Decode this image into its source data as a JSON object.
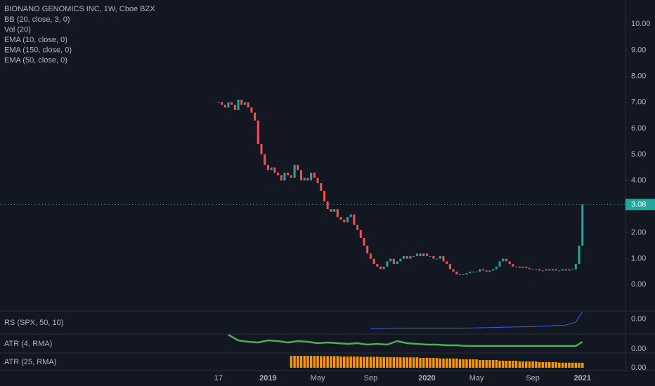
{
  "chart_data": [
    {
      "type": "candlestick",
      "title": "BIONANO GENOMICS INC, 1W, Cboe BZX",
      "indicators": [
        "BB (20, close, 3, 0)",
        "Vol (20)",
        "EMA (10, close, 0)",
        "EMA (150, close, 0)",
        "EMA (50, close, 0)"
      ],
      "x": [
        0,
        1,
        2,
        3,
        4,
        5,
        6,
        7,
        8,
        9,
        10,
        11,
        12,
        13,
        14,
        15,
        16,
        17,
        18,
        19,
        20,
        21,
        22,
        23,
        24,
        25,
        26,
        27,
        28,
        29,
        30,
        31,
        32,
        33,
        34,
        35,
        36,
        37,
        38,
        39,
        40,
        41,
        42,
        43,
        44,
        45,
        46,
        47,
        48,
        49,
        50,
        51,
        52,
        53,
        54,
        55,
        56,
        57,
        58,
        59,
        60,
        61,
        62,
        63,
        64,
        65,
        66,
        67,
        68,
        69,
        70,
        71,
        72,
        73,
        74,
        75,
        76,
        77,
        78,
        79,
        80,
        81,
        82,
        83,
        84,
        85,
        86,
        87,
        88,
        89,
        90,
        91,
        92,
        93,
        94,
        95,
        96,
        97,
        98,
        99,
        100,
        101,
        102,
        103,
        104,
        105,
        106,
        107,
        108,
        109,
        110
      ],
      "values": [
        7.0,
        6.9,
        6.8,
        7.0,
        6.9,
        6.7,
        7.1,
        6.9,
        7.0,
        6.8,
        6.6,
        6.3,
        5.4,
        5.0,
        4.6,
        4.4,
        4.5,
        4.3,
        4.2,
        4.0,
        4.3,
        4.2,
        4.1,
        4.6,
        4.4,
        4.0,
        4.1,
        4.0,
        4.3,
        4.1,
        3.9,
        3.6,
        3.2,
        2.9,
        2.8,
        2.9,
        2.6,
        2.5,
        2.4,
        2.6,
        2.7,
        2.3,
        2.1,
        1.8,
        1.5,
        1.2,
        1.0,
        0.8,
        0.7,
        0.6,
        0.7,
        0.9,
        1.0,
        0.8,
        0.9,
        1.0,
        1.1,
        1.0,
        1.1,
        1.1,
        1.2,
        1.1,
        1.2,
        1.1,
        1.1,
        1.0,
        1.0,
        1.1,
        0.9,
        0.8,
        0.6,
        0.5,
        0.4,
        0.4,
        0.4,
        0.45,
        0.5,
        0.5,
        0.5,
        0.6,
        0.55,
        0.5,
        0.55,
        0.6,
        0.7,
        0.9,
        1.0,
        0.9,
        0.8,
        0.7,
        0.7,
        0.65,
        0.7,
        0.65,
        0.6,
        0.6,
        0.6,
        0.55,
        0.55,
        0.6,
        0.55,
        0.6,
        0.55,
        0.55,
        0.6,
        0.55,
        0.6,
        0.6,
        0.8,
        1.5,
        3.08
      ],
      "last_price": {
        "value": 3.08,
        "label": "3.08"
      },
      "up_color": "#26a69a",
      "down_color": "#ef5350",
      "xlim": [
        -66,
        123
      ],
      "xticks": [
        {
          "value": 0,
          "label": "17"
        },
        {
          "value": 15,
          "label": "2019"
        },
        {
          "value": 30,
          "label": "May"
        },
        {
          "value": 46,
          "label": "Sep"
        },
        {
          "value": 63,
          "label": "2020"
        },
        {
          "value": 78,
          "label": "May"
        },
        {
          "value": 95,
          "label": "Sep"
        },
        {
          "value": 110,
          "label": "2021"
        }
      ],
      "ylim": [
        -1,
        10.92
      ],
      "yticks": [
        {
          "value": 0,
          "label": "0.00"
        },
        {
          "value": 1,
          "label": "1.00"
        },
        {
          "value": 2,
          "label": "2.00"
        },
        {
          "value": 3,
          "label": "3.00"
        },
        {
          "value": 4,
          "label": "4.00"
        },
        {
          "value": 5,
          "label": "5.00"
        },
        {
          "value": 6,
          "label": "6.00"
        },
        {
          "value": 7,
          "label": "7.00"
        },
        {
          "value": 8,
          "label": "8.00"
        },
        {
          "value": 9,
          "label": "9.00"
        },
        {
          "value": 10,
          "label": "10.00"
        }
      ]
    },
    {
      "type": "line",
      "title": "RS (SPX, 50, 10)",
      "color": "#2962ff",
      "x": [
        46,
        55,
        65,
        75,
        85,
        95,
        100,
        105,
        108,
        110
      ],
      "values": [
        -0.65,
        -0.6,
        -0.6,
        -0.6,
        -0.55,
        -0.5,
        -0.45,
        -0.4,
        -0.2,
        0.5
      ],
      "xlim": [
        -66,
        123
      ],
      "ylim": [
        -1,
        0.5
      ],
      "yticks": [
        {
          "value": 0,
          "label": "0.00"
        }
      ]
    },
    {
      "type": "line",
      "title": "ATR (4, RMA)",
      "color": "#4caf50",
      "x": [
        3,
        6,
        9,
        12,
        15,
        18,
        21,
        24,
        27,
        30,
        33,
        36,
        39,
        42,
        45,
        48,
        51,
        54,
        57,
        60,
        63,
        66,
        69,
        72,
        75,
        78,
        81,
        84,
        87,
        90,
        93,
        96,
        99,
        102,
        105,
        108,
        110
      ],
      "values": [
        1.0,
        0.6,
        0.5,
        0.45,
        0.6,
        0.55,
        0.45,
        0.55,
        0.5,
        0.4,
        0.45,
        0.4,
        0.35,
        0.4,
        0.3,
        0.35,
        0.3,
        0.55,
        0.4,
        0.35,
        0.3,
        0.3,
        0.25,
        0.25,
        0.2,
        0.2,
        0.2,
        0.2,
        0.2,
        0.2,
        0.2,
        0.2,
        0.2,
        0.2,
        0.2,
        0.2,
        0.5
      ],
      "xlim": [
        -66,
        123
      ],
      "ylim": [
        -0.3,
        1.0
      ],
      "yticks": [
        {
          "value": 0,
          "label": "0.00"
        }
      ]
    },
    {
      "type": "bar",
      "title": "ATR (25, RMA)",
      "color": "#ff9800",
      "x": [
        22,
        23,
        24,
        25,
        26,
        27,
        28,
        29,
        30,
        31,
        32,
        33,
        34,
        35,
        36,
        37,
        38,
        39,
        40,
        41,
        42,
        43,
        44,
        45,
        46,
        47,
        48,
        49,
        50,
        51,
        52,
        53,
        54,
        55,
        56,
        57,
        58,
        59,
        60,
        61,
        62,
        63,
        64,
        65,
        66,
        67,
        68,
        69,
        70,
        71,
        72,
        73,
        74,
        75,
        76,
        77,
        78,
        79,
        80,
        81,
        82,
        83,
        84,
        85,
        86,
        87,
        88,
        89,
        90,
        91,
        92,
        93,
        94,
        95,
        96,
        97,
        98,
        99,
        100,
        101,
        102,
        103,
        104,
        105,
        106,
        107,
        108,
        109,
        110
      ],
      "values": [
        0.85,
        0.85,
        0.85,
        0.85,
        0.85,
        0.85,
        0.85,
        0.85,
        0.85,
        0.83,
        0.83,
        0.83,
        0.83,
        0.83,
        0.83,
        0.8,
        0.8,
        0.8,
        0.8,
        0.8,
        0.8,
        0.78,
        0.78,
        0.78,
        0.78,
        0.78,
        0.78,
        0.76,
        0.76,
        0.76,
        0.76,
        0.76,
        0.76,
        0.74,
        0.74,
        0.74,
        0.74,
        0.74,
        0.74,
        0.7,
        0.7,
        0.7,
        0.7,
        0.7,
        0.7,
        0.66,
        0.66,
        0.66,
        0.66,
        0.66,
        0.66,
        0.6,
        0.6,
        0.6,
        0.6,
        0.6,
        0.6,
        0.55,
        0.55,
        0.55,
        0.55,
        0.55,
        0.55,
        0.5,
        0.5,
        0.5,
        0.5,
        0.5,
        0.5,
        0.45,
        0.45,
        0.45,
        0.45,
        0.45,
        0.45,
        0.4,
        0.4,
        0.4,
        0.4,
        0.4,
        0.4,
        0.36,
        0.36,
        0.36,
        0.36,
        0.36,
        0.36,
        0.35,
        0.35
      ],
      "xlim": [
        -66,
        123
      ],
      "ylim": [
        -0.2,
        1.0
      ],
      "yticks": [
        {
          "value": 0,
          "label": "0.00"
        }
      ]
    }
  ]
}
